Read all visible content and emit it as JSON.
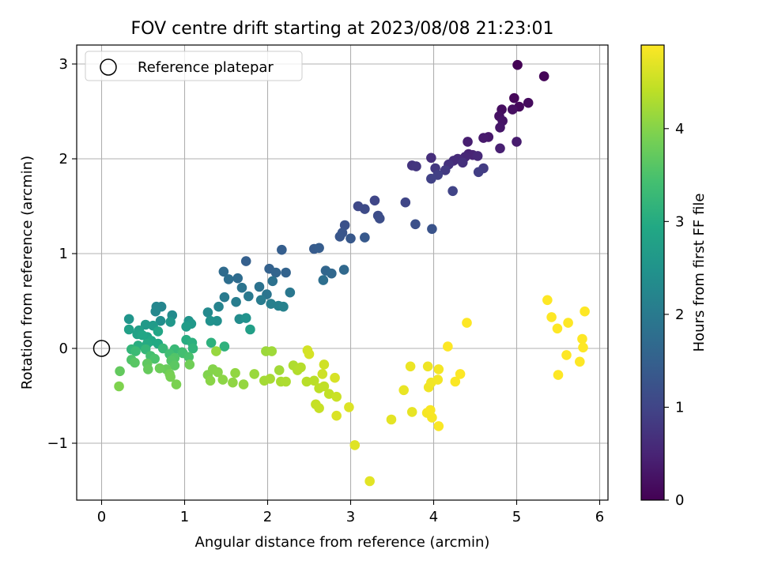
{
  "chart_data": {
    "type": "scatter",
    "title": "FOV centre drift starting at 2023/08/08 21:23:01",
    "xlabel": "Angular distance from reference (arcmin)",
    "ylabel": "Rotation from reference (arcmin)",
    "xlim": [
      -0.3,
      6.1
    ],
    "ylim": [
      -1.6,
      3.2
    ],
    "xticks": [
      0,
      1,
      2,
      3,
      4,
      5,
      6
    ],
    "yticks": [
      -1,
      0,
      1,
      2,
      3
    ],
    "xtick_labels": [
      "0",
      "1",
      "2",
      "3",
      "4",
      "5",
      "6"
    ],
    "ytick_labels": [
      "−1",
      "0",
      "1",
      "2",
      "3"
    ],
    "grid": true,
    "legend": {
      "placement": "upper-left",
      "entries": [
        {
          "label": "Reference platepar",
          "marker": "open-circle"
        }
      ]
    },
    "colorbar": {
      "label": "Hours from first FF file",
      "colormap": "viridis",
      "range": [
        0,
        4.9
      ],
      "ticks": [
        0,
        1,
        2,
        3,
        4
      ],
      "tick_labels": [
        "0",
        "1",
        "2",
        "3",
        "4"
      ]
    },
    "reference_point": {
      "x": 0,
      "y": 0
    },
    "points": [
      {
        "x": 5.01,
        "y": 2.99,
        "c": 0.02
      },
      {
        "x": 5.33,
        "y": 2.87,
        "c": 0.05
      },
      {
        "x": 4.97,
        "y": 2.64,
        "c": 0.08
      },
      {
        "x": 5.03,
        "y": 2.55,
        "c": 0.11
      },
      {
        "x": 5.14,
        "y": 2.59,
        "c": 0.14
      },
      {
        "x": 4.82,
        "y": 2.52,
        "c": 0.17
      },
      {
        "x": 4.95,
        "y": 2.52,
        "c": 0.2
      },
      {
        "x": 4.79,
        "y": 2.45,
        "c": 0.23
      },
      {
        "x": 4.83,
        "y": 2.4,
        "c": 0.26
      },
      {
        "x": 4.8,
        "y": 2.33,
        "c": 0.29
      },
      {
        "x": 4.66,
        "y": 2.23,
        "c": 0.32
      },
      {
        "x": 4.6,
        "y": 2.22,
        "c": 0.35
      },
      {
        "x": 5.0,
        "y": 2.18,
        "c": 0.38
      },
      {
        "x": 4.41,
        "y": 2.18,
        "c": 0.41
      },
      {
        "x": 4.8,
        "y": 2.11,
        "c": 0.44
      },
      {
        "x": 4.42,
        "y": 2.05,
        "c": 0.47
      },
      {
        "x": 4.47,
        "y": 2.04,
        "c": 0.5
      },
      {
        "x": 4.38,
        "y": 2.02,
        "c": 0.53
      },
      {
        "x": 4.53,
        "y": 2.03,
        "c": 0.56
      },
      {
        "x": 4.29,
        "y": 2.0,
        "c": 0.59
      },
      {
        "x": 4.24,
        "y": 1.98,
        "c": 0.62
      },
      {
        "x": 3.97,
        "y": 2.01,
        "c": 0.65
      },
      {
        "x": 4.35,
        "y": 1.96,
        "c": 0.68
      },
      {
        "x": 4.18,
        "y": 1.94,
        "c": 0.71
      },
      {
        "x": 3.74,
        "y": 1.93,
        "c": 0.74
      },
      {
        "x": 3.79,
        "y": 1.92,
        "c": 0.77
      },
      {
        "x": 4.02,
        "y": 1.9,
        "c": 0.8
      },
      {
        "x": 4.14,
        "y": 1.88,
        "c": 0.83
      },
      {
        "x": 4.6,
        "y": 1.9,
        "c": 0.86
      },
      {
        "x": 4.54,
        "y": 1.86,
        "c": 0.89
      },
      {
        "x": 4.05,
        "y": 1.83,
        "c": 0.92
      },
      {
        "x": 3.97,
        "y": 1.79,
        "c": 0.95
      },
      {
        "x": 4.23,
        "y": 1.66,
        "c": 0.98
      },
      {
        "x": 3.66,
        "y": 1.54,
        "c": 1.01
      },
      {
        "x": 3.29,
        "y": 1.56,
        "c": 1.04
      },
      {
        "x": 3.09,
        "y": 1.5,
        "c": 1.07
      },
      {
        "x": 3.17,
        "y": 1.47,
        "c": 1.1
      },
      {
        "x": 3.33,
        "y": 1.4,
        "c": 1.13
      },
      {
        "x": 3.35,
        "y": 1.37,
        "c": 1.16
      },
      {
        "x": 3.78,
        "y": 1.31,
        "c": 1.19
      },
      {
        "x": 2.93,
        "y": 1.3,
        "c": 1.22
      },
      {
        "x": 3.98,
        "y": 1.26,
        "c": 1.25
      },
      {
        "x": 2.9,
        "y": 1.22,
        "c": 1.28
      },
      {
        "x": 2.87,
        "y": 1.18,
        "c": 1.31
      },
      {
        "x": 3.0,
        "y": 1.16,
        "c": 1.34
      },
      {
        "x": 3.17,
        "y": 1.17,
        "c": 1.37
      },
      {
        "x": 2.56,
        "y": 1.05,
        "c": 1.4
      },
      {
        "x": 2.62,
        "y": 1.06,
        "c": 1.43
      },
      {
        "x": 2.17,
        "y": 1.04,
        "c": 1.46
      },
      {
        "x": 1.74,
        "y": 0.92,
        "c": 1.49
      },
      {
        "x": 2.02,
        "y": 0.84,
        "c": 1.52
      },
      {
        "x": 2.22,
        "y": 0.8,
        "c": 1.55
      },
      {
        "x": 2.1,
        "y": 0.8,
        "c": 1.58
      },
      {
        "x": 2.7,
        "y": 0.82,
        "c": 1.61
      },
      {
        "x": 2.77,
        "y": 0.79,
        "c": 1.64
      },
      {
        "x": 2.92,
        "y": 0.83,
        "c": 1.67
      },
      {
        "x": 1.47,
        "y": 0.81,
        "c": 1.7
      },
      {
        "x": 1.64,
        "y": 0.74,
        "c": 1.73
      },
      {
        "x": 1.53,
        "y": 0.73,
        "c": 1.76
      },
      {
        "x": 2.67,
        "y": 0.72,
        "c": 1.79
      },
      {
        "x": 2.06,
        "y": 0.71,
        "c": 1.82
      },
      {
        "x": 1.9,
        "y": 0.65,
        "c": 1.85
      },
      {
        "x": 1.69,
        "y": 0.64,
        "c": 1.88
      },
      {
        "x": 1.99,
        "y": 0.57,
        "c": 1.91
      },
      {
        "x": 2.27,
        "y": 0.59,
        "c": 1.94
      },
      {
        "x": 1.77,
        "y": 0.55,
        "c": 1.97
      },
      {
        "x": 1.48,
        "y": 0.54,
        "c": 2.0
      },
      {
        "x": 1.92,
        "y": 0.51,
        "c": 2.03
      },
      {
        "x": 1.62,
        "y": 0.49,
        "c": 2.06
      },
      {
        "x": 2.04,
        "y": 0.47,
        "c": 2.09
      },
      {
        "x": 2.13,
        "y": 0.45,
        "c": 2.12
      },
      {
        "x": 2.19,
        "y": 0.44,
        "c": 2.15
      },
      {
        "x": 1.41,
        "y": 0.44,
        "c": 2.18
      },
      {
        "x": 0.72,
        "y": 0.44,
        "c": 2.21
      },
      {
        "x": 0.66,
        "y": 0.44,
        "c": 2.24
      },
      {
        "x": 0.65,
        "y": 0.39,
        "c": 2.27
      },
      {
        "x": 1.28,
        "y": 0.38,
        "c": 2.3
      },
      {
        "x": 0.85,
        "y": 0.35,
        "c": 2.33
      },
      {
        "x": 1.66,
        "y": 0.31,
        "c": 2.36
      },
      {
        "x": 0.71,
        "y": 0.29,
        "c": 2.39
      },
      {
        "x": 1.39,
        "y": 0.29,
        "c": 2.42
      },
      {
        "x": 1.31,
        "y": 0.29,
        "c": 2.45
      },
      {
        "x": 1.74,
        "y": 0.32,
        "c": 2.48
      },
      {
        "x": 1.05,
        "y": 0.29,
        "c": 2.51
      },
      {
        "x": 0.33,
        "y": 0.31,
        "c": 2.54
      },
      {
        "x": 0.83,
        "y": 0.28,
        "c": 2.57
      },
      {
        "x": 1.08,
        "y": 0.26,
        "c": 2.6
      },
      {
        "x": 0.53,
        "y": 0.25,
        "c": 2.63
      },
      {
        "x": 0.62,
        "y": 0.24,
        "c": 2.66
      },
      {
        "x": 1.02,
        "y": 0.23,
        "c": 2.69
      },
      {
        "x": 0.45,
        "y": 0.19,
        "c": 2.72
      },
      {
        "x": 1.79,
        "y": 0.2,
        "c": 2.75
      },
      {
        "x": 0.33,
        "y": 0.2,
        "c": 2.78
      },
      {
        "x": 0.43,
        "y": 0.15,
        "c": 2.81
      },
      {
        "x": 0.55,
        "y": 0.12,
        "c": 2.84
      },
      {
        "x": 0.68,
        "y": 0.18,
        "c": 2.87
      },
      {
        "x": 0.49,
        "y": 0.14,
        "c": 2.9
      },
      {
        "x": 0.6,
        "y": 0.08,
        "c": 2.93
      },
      {
        "x": 0.68,
        "y": 0.05,
        "c": 2.96
      },
      {
        "x": 0.55,
        "y": 0.05,
        "c": 2.99
      },
      {
        "x": 1.02,
        "y": 0.09,
        "c": 3.02
      },
      {
        "x": 0.44,
        "y": 0.03,
        "c": 3.05
      },
      {
        "x": 1.09,
        "y": 0.06,
        "c": 3.08
      },
      {
        "x": 1.32,
        "y": 0.06,
        "c": 3.11
      },
      {
        "x": 1.48,
        "y": 0.02,
        "c": 3.14
      },
      {
        "x": 1.1,
        "y": 0.0,
        "c": 3.17
      },
      {
        "x": 0.36,
        "y": -0.01,
        "c": 3.2
      },
      {
        "x": 0.53,
        "y": -0.01,
        "c": 3.23
      },
      {
        "x": 0.74,
        "y": 0.0,
        "c": 3.26
      },
      {
        "x": 0.88,
        "y": -0.01,
        "c": 3.29
      },
      {
        "x": 0.41,
        "y": -0.03,
        "c": 3.32
      },
      {
        "x": 0.97,
        "y": -0.04,
        "c": 3.35
      },
      {
        "x": 0.82,
        "y": -0.06,
        "c": 3.38
      },
      {
        "x": 0.98,
        "y": -0.05,
        "c": 3.41
      },
      {
        "x": 0.59,
        "y": -0.08,
        "c": 3.44
      },
      {
        "x": 1.05,
        "y": -0.09,
        "c": 3.47
      },
      {
        "x": 0.64,
        "y": -0.11,
        "c": 3.5
      },
      {
        "x": 0.36,
        "y": -0.12,
        "c": 3.53
      },
      {
        "x": 0.88,
        "y": -0.1,
        "c": 3.56
      },
      {
        "x": 0.84,
        "y": -0.13,
        "c": 3.59
      },
      {
        "x": 0.4,
        "y": -0.15,
        "c": 3.62
      },
      {
        "x": 0.88,
        "y": -0.18,
        "c": 3.65
      },
      {
        "x": 0.55,
        "y": -0.16,
        "c": 3.68
      },
      {
        "x": 0.22,
        "y": -0.24,
        "c": 3.71
      },
      {
        "x": 0.56,
        "y": -0.22,
        "c": 3.74
      },
      {
        "x": 0.78,
        "y": -0.22,
        "c": 3.77
      },
      {
        "x": 0.7,
        "y": -0.21,
        "c": 3.8
      },
      {
        "x": 1.06,
        "y": -0.17,
        "c": 3.83
      },
      {
        "x": 0.82,
        "y": -0.27,
        "c": 3.86
      },
      {
        "x": 0.83,
        "y": -0.3,
        "c": 3.89
      },
      {
        "x": 0.9,
        "y": -0.38,
        "c": 3.92
      },
      {
        "x": 0.21,
        "y": -0.4,
        "c": 3.95
      },
      {
        "x": 1.28,
        "y": -0.28,
        "c": 3.97
      },
      {
        "x": 1.34,
        "y": -0.22,
        "c": 3.99
      },
      {
        "x": 1.4,
        "y": -0.25,
        "c": 4.01
      },
      {
        "x": 1.31,
        "y": -0.34,
        "c": 4.03
      },
      {
        "x": 1.46,
        "y": -0.33,
        "c": 4.05
      },
      {
        "x": 1.58,
        "y": -0.36,
        "c": 4.07
      },
      {
        "x": 1.61,
        "y": -0.26,
        "c": 4.09
      },
      {
        "x": 1.71,
        "y": -0.38,
        "c": 4.11
      },
      {
        "x": 1.38,
        "y": -0.03,
        "c": 4.13
      },
      {
        "x": 1.84,
        "y": -0.27,
        "c": 4.15
      },
      {
        "x": 1.98,
        "y": -0.03,
        "c": 4.17
      },
      {
        "x": 2.05,
        "y": -0.03,
        "c": 4.19
      },
      {
        "x": 2.14,
        "y": -0.23,
        "c": 4.21
      },
      {
        "x": 1.96,
        "y": -0.34,
        "c": 4.23
      },
      {
        "x": 2.03,
        "y": -0.32,
        "c": 4.25
      },
      {
        "x": 2.16,
        "y": -0.35,
        "c": 4.27
      },
      {
        "x": 2.22,
        "y": -0.35,
        "c": 4.29
      },
      {
        "x": 2.31,
        "y": -0.18,
        "c": 4.31
      },
      {
        "x": 2.36,
        "y": -0.23,
        "c": 4.33
      },
      {
        "x": 2.4,
        "y": -0.2,
        "c": 4.35
      },
      {
        "x": 2.47,
        "y": -0.35,
        "c": 4.37
      },
      {
        "x": 2.56,
        "y": -0.34,
        "c": 4.39
      },
      {
        "x": 2.62,
        "y": -0.42,
        "c": 4.41
      },
      {
        "x": 2.68,
        "y": -0.4,
        "c": 4.43
      },
      {
        "x": 2.74,
        "y": -0.48,
        "c": 4.45
      },
      {
        "x": 2.58,
        "y": -0.59,
        "c": 4.47
      },
      {
        "x": 2.62,
        "y": -0.63,
        "c": 4.49
      },
      {
        "x": 2.83,
        "y": -0.51,
        "c": 4.51
      },
      {
        "x": 2.66,
        "y": -0.27,
        "c": 4.53
      },
      {
        "x": 2.68,
        "y": -0.17,
        "c": 4.55
      },
      {
        "x": 2.48,
        "y": -0.02,
        "c": 4.57
      },
      {
        "x": 2.5,
        "y": -0.06,
        "c": 4.59
      },
      {
        "x": 2.81,
        "y": -0.31,
        "c": 4.61
      },
      {
        "x": 2.83,
        "y": -0.71,
        "c": 4.63
      },
      {
        "x": 2.98,
        "y": -0.62,
        "c": 4.65
      },
      {
        "x": 3.05,
        "y": -1.02,
        "c": 4.67
      },
      {
        "x": 3.23,
        "y": -1.4,
        "c": 4.69
      },
      {
        "x": 3.49,
        "y": -0.75,
        "c": 4.71
      },
      {
        "x": 3.74,
        "y": -0.67,
        "c": 4.73
      },
      {
        "x": 3.64,
        "y": -0.44,
        "c": 4.75
      },
      {
        "x": 3.72,
        "y": -0.19,
        "c": 4.77
      },
      {
        "x": 3.93,
        "y": -0.19,
        "c": 4.79
      },
      {
        "x": 3.94,
        "y": -0.41,
        "c": 4.8
      },
      {
        "x": 3.97,
        "y": -0.36,
        "c": 4.81
      },
      {
        "x": 4.05,
        "y": -0.33,
        "c": 4.82
      },
      {
        "x": 4.06,
        "y": -0.22,
        "c": 4.83
      },
      {
        "x": 3.92,
        "y": -0.68,
        "c": 4.84
      },
      {
        "x": 3.98,
        "y": -0.73,
        "c": 4.85
      },
      {
        "x": 3.96,
        "y": -0.65,
        "c": 4.86
      },
      {
        "x": 4.06,
        "y": -0.82,
        "c": 4.87
      },
      {
        "x": 4.26,
        "y": -0.35,
        "c": 4.88
      },
      {
        "x": 4.32,
        "y": -0.27,
        "c": 4.89
      },
      {
        "x": 4.17,
        "y": 0.02,
        "c": 4.9
      },
      {
        "x": 4.4,
        "y": 0.27,
        "c": 4.91
      },
      {
        "x": 5.37,
        "y": 0.51,
        "c": 4.92
      },
      {
        "x": 5.42,
        "y": 0.33,
        "c": 4.92
      },
      {
        "x": 5.49,
        "y": 0.21,
        "c": 4.93
      },
      {
        "x": 5.62,
        "y": 0.27,
        "c": 4.93
      },
      {
        "x": 5.82,
        "y": 0.39,
        "c": 4.94
      },
      {
        "x": 5.79,
        "y": 0.1,
        "c": 4.94
      },
      {
        "x": 5.8,
        "y": 0.01,
        "c": 4.95
      },
      {
        "x": 5.6,
        "y": -0.07,
        "c": 4.95
      },
      {
        "x": 5.76,
        "y": -0.14,
        "c": 4.96
      },
      {
        "x": 5.5,
        "y": -0.28,
        "c": 4.96
      }
    ]
  }
}
